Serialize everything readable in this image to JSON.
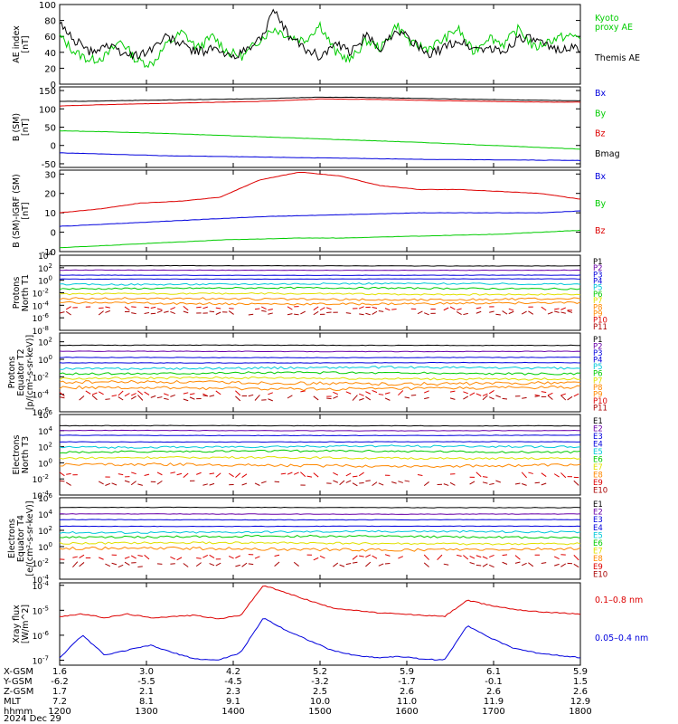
{
  "colors": {
    "black": "#000000",
    "green": "#00cc00",
    "red": "#dd0000",
    "blue": "#0000dd",
    "purple": "#6a00a8",
    "cyan": "#00c8d8",
    "yellow": "#e0e000",
    "orange": "#ff8800",
    "darkred": "#a80000"
  },
  "chart_data": [
    {
      "type": "line",
      "name": "ae",
      "ylabel": "AE index\n[nT]",
      "ylim": [
        0,
        100
      ],
      "yticks": [
        "0",
        "20",
        "40",
        "60",
        "80",
        "100"
      ],
      "series": [
        {
          "name": "Kyoto proxy AE",
          "color": "green",
          "style": "noisy",
          "values": [
            60,
            40,
            30,
            35,
            55,
            30,
            25,
            50,
            65,
            45,
            60,
            40,
            35,
            55,
            70,
            60,
            55,
            75,
            40,
            30,
            55,
            45,
            75,
            50,
            45,
            55,
            70,
            40,
            60,
            50,
            70,
            45,
            55,
            60,
            60
          ]
        },
        {
          "name": "Themis AE",
          "color": "black",
          "style": "noisy",
          "values": [
            75,
            55,
            40,
            50,
            40,
            35,
            45,
            60,
            50,
            40,
            45,
            35,
            40,
            55,
            90,
            60,
            45,
            35,
            50,
            40,
            60,
            45,
            70,
            55,
            35,
            45,
            55,
            45,
            45,
            40,
            60,
            55,
            45,
            45,
            45
          ]
        }
      ],
      "legend": [
        {
          "label": "Kyoto\nproxy AE",
          "color": "green"
        },
        {
          "label": "Themis AE",
          "color": "black"
        }
      ]
    },
    {
      "type": "line",
      "name": "bsm",
      "ylabel": "B (SM)\n[nT]",
      "ylim": [
        -60,
        160
      ],
      "yticks": [
        "-50",
        "0",
        "50",
        "100",
        "150"
      ],
      "series": [
        {
          "name": "Bx",
          "color": "blue",
          "style": "smooth",
          "values": [
            -20,
            -24,
            -28,
            -30,
            -32,
            -34,
            -36,
            -38,
            -39,
            -40,
            -41
          ]
        },
        {
          "name": "By",
          "color": "green",
          "style": "smooth",
          "values": [
            40,
            37,
            33,
            28,
            23,
            18,
            13,
            8,
            2,
            -4,
            -10
          ]
        },
        {
          "name": "Bz",
          "color": "red",
          "style": "smooth",
          "values": [
            108,
            112,
            115,
            118,
            121,
            127,
            126,
            123,
            121,
            119,
            118
          ]
        },
        {
          "name": "Bmag",
          "color": "black",
          "style": "smooth",
          "values": [
            120,
            122,
            124,
            126,
            128,
            132,
            131,
            128,
            126,
            124,
            122
          ]
        }
      ],
      "legend": [
        {
          "label": "Bx",
          "color": "blue"
        },
        {
          "label": "By",
          "color": "green"
        },
        {
          "label": "Bz",
          "color": "red"
        },
        {
          "label": "Bmag",
          "color": "black"
        }
      ]
    },
    {
      "type": "line",
      "name": "bigrf",
      "ylabel": "B (SM)-IGRF (SM)\n[nT]",
      "ylim": [
        -10,
        32
      ],
      "yticks": [
        "-10",
        "0",
        "10",
        "20",
        "30"
      ],
      "series": [
        {
          "name": "Bx",
          "color": "blue",
          "style": "smooth",
          "values": [
            3,
            4,
            5,
            6,
            7,
            8,
            8.5,
            9,
            9.5,
            10,
            10,
            10,
            10,
            11
          ]
        },
        {
          "name": "By",
          "color": "green",
          "style": "smooth",
          "values": [
            -8,
            -7,
            -6,
            -5,
            -4,
            -3.5,
            -3,
            -3,
            -2.5,
            -2,
            -1.5,
            -1,
            0,
            1
          ]
        },
        {
          "name": "Bz",
          "color": "red",
          "style": "smooth",
          "values": [
            10,
            12,
            15,
            16,
            18,
            27,
            31,
            29,
            24,
            22,
            22,
            21,
            20,
            17
          ]
        }
      ],
      "legend": [
        {
          "label": "Bx",
          "color": "blue"
        },
        {
          "label": "By",
          "color": "green"
        },
        {
          "label": "Bz",
          "color": "red"
        }
      ]
    },
    {
      "type": "line",
      "name": "pn",
      "ylabel": "Protons\nNorth T1",
      "log": true,
      "ylim": [
        -8,
        4
      ],
      "yticks": [
        {
          "e": "4"
        },
        {
          "e": "2"
        },
        {
          "e": "0"
        },
        {
          "e": "-2"
        },
        {
          "e": "-4"
        },
        {
          "e": "-6"
        },
        {
          "e": "-8"
        }
      ],
      "levels": [
        {
          "label": "P1",
          "color": "black",
          "value": 2.3
        },
        {
          "label": "P2",
          "color": "purple",
          "value": 1.6
        },
        {
          "label": "P3",
          "color": "blue",
          "value": 0.8
        },
        {
          "label": "P4",
          "color": "blue",
          "value": 0.2
        },
        {
          "label": "P5",
          "color": "cyan",
          "value": -0.6
        },
        {
          "label": "P6",
          "color": "green",
          "value": -1.3
        },
        {
          "label": "P7",
          "color": "yellow",
          "value": -2.2
        },
        {
          "label": "P8",
          "color": "orange",
          "value": -3.0
        },
        {
          "label": "P9",
          "color": "orange",
          "value": -3.7
        },
        {
          "label": "P10",
          "color": "red",
          "value": -4.5
        },
        {
          "label": "P11",
          "color": "darkred",
          "value": -5.2
        }
      ]
    },
    {
      "type": "line",
      "name": "peq",
      "ylabel": "Protons\nEquator T2\n[p/(cm²-s-sr-keV)]",
      "log": true,
      "ylim": [
        -6,
        3
      ],
      "yticks": [
        {
          "e": "2"
        },
        {
          "e": "0"
        },
        {
          "e": "-2"
        },
        {
          "e": "-4"
        },
        {
          "e": "-6"
        }
      ],
      "levels": [
        {
          "label": "P1",
          "color": "black",
          "value": 1.6
        },
        {
          "label": "P2",
          "color": "purple",
          "value": 0.9
        },
        {
          "label": "P3",
          "color": "blue",
          "value": 0.2
        },
        {
          "label": "P4",
          "color": "blue",
          "value": -0.4
        },
        {
          "label": "P5",
          "color": "cyan",
          "value": -1.0
        },
        {
          "label": "P6",
          "color": "green",
          "value": -1.6
        },
        {
          "label": "P7",
          "color": "yellow",
          "value": -2.2
        },
        {
          "label": "P8",
          "color": "orange",
          "value": -2.7
        },
        {
          "label": "P9",
          "color": "orange",
          "value": -3.3
        },
        {
          "label": "P10",
          "color": "red",
          "value": -3.9
        },
        {
          "label": "P11",
          "color": "darkred",
          "value": -4.4
        }
      ]
    },
    {
      "type": "line",
      "name": "en",
      "ylabel": "Electrons\nNorth T3",
      "log": true,
      "ylim": [
        -4,
        6
      ],
      "yticks": [
        {
          "e": "6"
        },
        {
          "e": "4"
        },
        {
          "e": "2"
        },
        {
          "e": "0"
        },
        {
          "e": "-2"
        },
        {
          "e": "-4"
        }
      ],
      "levels": [
        {
          "label": "E1",
          "color": "black",
          "value": 4.6
        },
        {
          "label": "E2",
          "color": "purple",
          "value": 4.0
        },
        {
          "label": "E3",
          "color": "blue",
          "value": 3.4
        },
        {
          "label": "E4",
          "color": "blue",
          "value": 2.6
        },
        {
          "label": "E5",
          "color": "cyan",
          "value": 2.0
        },
        {
          "label": "E6",
          "color": "green",
          "value": 1.4
        },
        {
          "label": "E7",
          "color": "yellow",
          "value": 0.6
        },
        {
          "label": "E8",
          "color": "orange",
          "value": -0.3
        },
        {
          "label": "E9",
          "color": "red",
          "value": -1.5
        },
        {
          "label": "E10",
          "color": "darkred",
          "value": -2.5
        }
      ]
    },
    {
      "type": "line",
      "name": "eeq",
      "ylabel": "Electrons\nEquator T4\n[e/(cm²-s-sr-keV)]",
      "log": true,
      "ylim": [
        -4,
        6
      ],
      "yticks": [
        {
          "e": "6"
        },
        {
          "e": "4"
        },
        {
          "e": "2"
        },
        {
          "e": "0"
        },
        {
          "e": "-2"
        },
        {
          "e": "-4"
        }
      ],
      "levels": [
        {
          "label": "E1",
          "color": "black",
          "value": 4.8
        },
        {
          "label": "E2",
          "color": "purple",
          "value": 4.0
        },
        {
          "label": "E3",
          "color": "blue",
          "value": 3.3
        },
        {
          "label": "E4",
          "color": "blue",
          "value": 2.5
        },
        {
          "label": "E5",
          "color": "cyan",
          "value": 1.8
        },
        {
          "label": "E6",
          "color": "green",
          "value": 1.2
        },
        {
          "label": "E7",
          "color": "yellow",
          "value": 0.4
        },
        {
          "label": "E8",
          "color": "orange",
          "value": -0.3
        },
        {
          "label": "E9",
          "color": "red",
          "value": -1.3
        },
        {
          "label": "E10",
          "color": "darkred",
          "value": -2.2
        }
      ]
    },
    {
      "type": "line",
      "name": "xray",
      "ylabel": "Xray flux\n[W/m^2]",
      "log": true,
      "ylim": [
        -7.2,
        -3.9
      ],
      "yticks": [
        {
          "e": "-4"
        },
        {
          "e": "-5"
        },
        {
          "e": "-6"
        },
        {
          "e": "-7"
        }
      ],
      "series": [
        {
          "name": "0.1-0.8 nm",
          "color": "red",
          "style": "smooth",
          "values": [
            -5.25,
            -5.15,
            -5.3,
            -5.15,
            -5.3,
            -5.25,
            -5.2,
            -5.35,
            -5.2,
            -4.0,
            -4.3,
            -4.6,
            -4.9,
            -5.0,
            -5.1,
            -5.15,
            -5.2,
            -5.25,
            -4.6,
            -4.8,
            -4.95,
            -5.05,
            -5.1,
            -5.15
          ]
        },
        {
          "name": "0.05-0.4 nm",
          "color": "blue",
          "style": "smooth",
          "values": [
            -6.9,
            -6.0,
            -6.8,
            -6.6,
            -6.4,
            -6.7,
            -6.95,
            -7.0,
            -6.7,
            -5.3,
            -5.8,
            -6.2,
            -6.6,
            -6.8,
            -6.9,
            -6.85,
            -6.95,
            -7.0,
            -5.6,
            -6.1,
            -6.5,
            -6.7,
            -6.8,
            -6.9
          ]
        }
      ],
      "legend": [
        {
          "label": "0.1–0.8 nm",
          "color": "red"
        },
        {
          "label": "0.05–0.4 nm",
          "color": "blue"
        }
      ]
    }
  ],
  "footer": {
    "row_labels": [
      "X-GSM",
      "Y-GSM",
      "Z-GSM",
      "MLT",
      "hhmm",
      "2024 Dec 29"
    ],
    "columns": [
      {
        "x_gsm": "1.6",
        "y_gsm": "-6.2",
        "z_gsm": "1.7",
        "mlt": "7.2",
        "hhmm": "1200"
      },
      {
        "x_gsm": "3.0",
        "y_gsm": "-5.5",
        "z_gsm": "2.1",
        "mlt": "8.1",
        "hhmm": "1300"
      },
      {
        "x_gsm": "4.2",
        "y_gsm": "-4.5",
        "z_gsm": "2.3",
        "mlt": "9.1",
        "hhmm": "1400"
      },
      {
        "x_gsm": "5.2",
        "y_gsm": "-3.2",
        "z_gsm": "2.5",
        "mlt": "10.0",
        "hhmm": "1500"
      },
      {
        "x_gsm": "5.9",
        "y_gsm": "-1.7",
        "z_gsm": "2.6",
        "mlt": "11.0",
        "hhmm": "1600"
      },
      {
        "x_gsm": "6.1",
        "y_gsm": "-0.1",
        "z_gsm": "2.6",
        "mlt": "11.9",
        "hhmm": "1700"
      },
      {
        "x_gsm": "5.9",
        "y_gsm": "1.5",
        "z_gsm": "2.6",
        "mlt": "12.9",
        "hhmm": "1800"
      }
    ]
  }
}
